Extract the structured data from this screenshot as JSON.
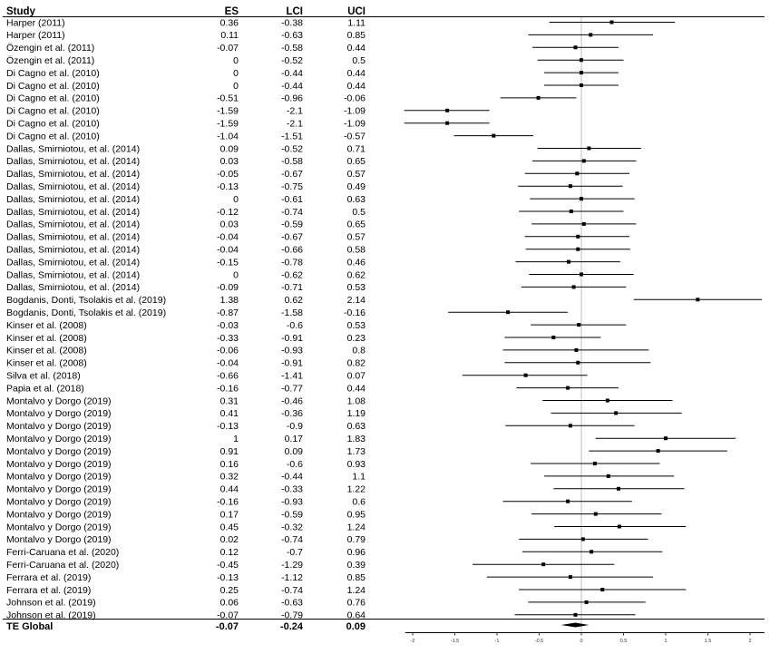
{
  "chart_data": {
    "type": "forest",
    "columns": {
      "study": "Study",
      "es": "ES",
      "lci": "LCI",
      "uci": "UCI"
    },
    "rows": [
      {
        "study": "Harper (2011)",
        "es": "0.36",
        "lci": "-0.38",
        "uci": "1.11"
      },
      {
        "study": "Harper (2011)",
        "es": "0.11",
        "lci": "-0.63",
        "uci": "0.85"
      },
      {
        "study": "Özengin et al. (2011)",
        "es": "-0.07",
        "lci": "-0.58",
        "uci": "0.44"
      },
      {
        "study": "Özengin et al. (2011)",
        "es": "0",
        "lci": "-0.52",
        "uci": "0.5"
      },
      {
        "study": "Di Cagno et al. (2010)",
        "es": "0",
        "lci": "-0.44",
        "uci": "0.44"
      },
      {
        "study": "Di Cagno et al. (2010)",
        "es": "0",
        "lci": "-0.44",
        "uci": "0.44"
      },
      {
        "study": "Di Cagno et al. (2010)",
        "es": "-0.51",
        "lci": "-0.96",
        "uci": "-0.06"
      },
      {
        "study": "Di Cagno et al. (2010)",
        "es": "-1.59",
        "lci": "-2.1",
        "uci": "-1.09"
      },
      {
        "study": "Di Cagno et al. (2010)",
        "es": "-1.59",
        "lci": "-2.1",
        "uci": "-1.09"
      },
      {
        "study": "Di Cagno et al. (2010)",
        "es": "-1.04",
        "lci": "-1.51",
        "uci": "-0.57"
      },
      {
        "study": "Dallas, Smirniotou, et al. (2014)",
        "es": "0.09",
        "lci": "-0.52",
        "uci": "0.71"
      },
      {
        "study": "Dallas, Smirniotou, et al. (2014)",
        "es": "0.03",
        "lci": "-0.58",
        "uci": "0.65"
      },
      {
        "study": "Dallas, Smirniotou, et al. (2014)",
        "es": "-0.05",
        "lci": "-0.67",
        "uci": "0.57"
      },
      {
        "study": "Dallas, Smirniotou, et al. (2014)",
        "es": "-0.13",
        "lci": "-0.75",
        "uci": "0.49"
      },
      {
        "study": "Dallas, Smirniotou, et al. (2014)",
        "es": "0",
        "lci": "-0.61",
        "uci": "0.63"
      },
      {
        "study": "Dallas, Smirniotou, et al. (2014)",
        "es": "-0.12",
        "lci": "-0.74",
        "uci": "0.5"
      },
      {
        "study": "Dallas, Smirniotou, et al. (2014)",
        "es": "0.03",
        "lci": "-0.59",
        "uci": "0.65"
      },
      {
        "study": "Dallas, Smirniotou, et al. (2014)",
        "es": "-0.04",
        "lci": "-0.67",
        "uci": "0.57"
      },
      {
        "study": "Dallas, Smirniotou, et al. (2014)",
        "es": "-0.04",
        "lci": "-0.66",
        "uci": "0.58"
      },
      {
        "study": "Dallas, Smirniotou, et al. (2014)",
        "es": "-0.15",
        "lci": "-0.78",
        "uci": "0.46"
      },
      {
        "study": "Dallas, Smirniotou, et al. (2014)",
        "es": "0",
        "lci": "-0.62",
        "uci": "0.62"
      },
      {
        "study": "Dallas, Smirniotou, et al. (2014)",
        "es": "-0.09",
        "lci": "-0.71",
        "uci": "0.53"
      },
      {
        "study": "Bogdanis, Donti,  Tsolakis et al. (2019)",
        "es": "1.38",
        "lci": "0.62",
        "uci": "2.14"
      },
      {
        "study": "Bogdanis, Donti,  Tsolakis et al. (2019)",
        "es": "-0.87",
        "lci": "-1.58",
        "uci": "-0.16"
      },
      {
        "study": "Kinser et al. (2008)",
        "es": "-0.03",
        "lci": "-0.6",
        "uci": "0.53"
      },
      {
        "study": "Kinser et al. (2008)",
        "es": "-0.33",
        "lci": "-0.91",
        "uci": "0.23"
      },
      {
        "study": "Kinser et al. (2008)",
        "es": "-0.06",
        "lci": "-0.93",
        "uci": "0.8"
      },
      {
        "study": "Kinser et al. (2008)",
        "es": "-0.04",
        "lci": "-0.91",
        "uci": "0.82"
      },
      {
        "study": "Silva et al. (2018)",
        "es": "-0.66",
        "lci": "-1.41",
        "uci": "0.07"
      },
      {
        "study": "Papia et al. (2018)",
        "es": "-0.16",
        "lci": "-0.77",
        "uci": "0.44"
      },
      {
        "study": "Montalvo y Dorgo (2019)",
        "es": "0.31",
        "lci": "-0.46",
        "uci": "1.08"
      },
      {
        "study": "Montalvo y Dorgo (2019)",
        "es": "0.41",
        "lci": "-0.36",
        "uci": "1.19"
      },
      {
        "study": "Montalvo y Dorgo (2019)",
        "es": "-0.13",
        "lci": "-0.9",
        "uci": "0.63"
      },
      {
        "study": "Montalvo y Dorgo (2019)",
        "es": "1",
        "lci": "0.17",
        "uci": "1.83"
      },
      {
        "study": "Montalvo y Dorgo (2019)",
        "es": "0.91",
        "lci": "0.09",
        "uci": "1.73"
      },
      {
        "study": "Montalvo y Dorgo (2019)",
        "es": "0.16",
        "lci": "-0.6",
        "uci": "0.93"
      },
      {
        "study": "Montalvo y Dorgo (2019)",
        "es": "0.32",
        "lci": "-0.44",
        "uci": "1.1"
      },
      {
        "study": "Montalvo y Dorgo (2019)",
        "es": "0.44",
        "lci": "-0.33",
        "uci": "1.22"
      },
      {
        "study": "Montalvo y Dorgo (2019)",
        "es": "-0.16",
        "lci": "-0.93",
        "uci": "0.6"
      },
      {
        "study": "Montalvo y Dorgo (2019)",
        "es": "0.17",
        "lci": "-0.59",
        "uci": "0.95"
      },
      {
        "study": "Montalvo y Dorgo (2019)",
        "es": "0.45",
        "lci": "-0.32",
        "uci": "1.24"
      },
      {
        "study": "Montalvo y Dorgo (2019)",
        "es": "0.02",
        "lci": "-0.74",
        "uci": "0.79"
      },
      {
        "study": "Ferri-Caruana et al. (2020)",
        "es": "0.12",
        "lci": "-0.7",
        "uci": "0.96"
      },
      {
        "study": "Ferri-Caruana et al. (2020)",
        "es": "-0.45",
        "lci": "-1.29",
        "uci": "0.39"
      },
      {
        "study": "Ferrara et al. (2019)",
        "es": "-0.13",
        "lci": "-1.12",
        "uci": "0.85"
      },
      {
        "study": "Ferrara et al. (2019)",
        "es": "0.25",
        "lci": "-0.74",
        "uci": "1.24"
      },
      {
        "study": "Johnson et al. (2019)",
        "es": "0.06",
        "lci": "-0.63",
        "uci": "0.76"
      },
      {
        "study": "Johnson et al. (2019)",
        "es": "-0.07",
        "lci": "-0.79",
        "uci": "0.64"
      }
    ],
    "total": {
      "study": "TE Global",
      "es": "-0.07",
      "lci": "-0.24",
      "uci": "0.09"
    },
    "x_ticks": [
      "-2",
      "-1.5",
      "-1",
      "-0.5",
      "0",
      "0.5",
      "1",
      "1.5",
      "2"
    ],
    "xlim": [
      -2.1,
      2.15
    ],
    "reference_line": 0,
    "colors": {
      "marks": "#000000",
      "reference": "#bfbfbf",
      "rules": "#000000"
    }
  }
}
